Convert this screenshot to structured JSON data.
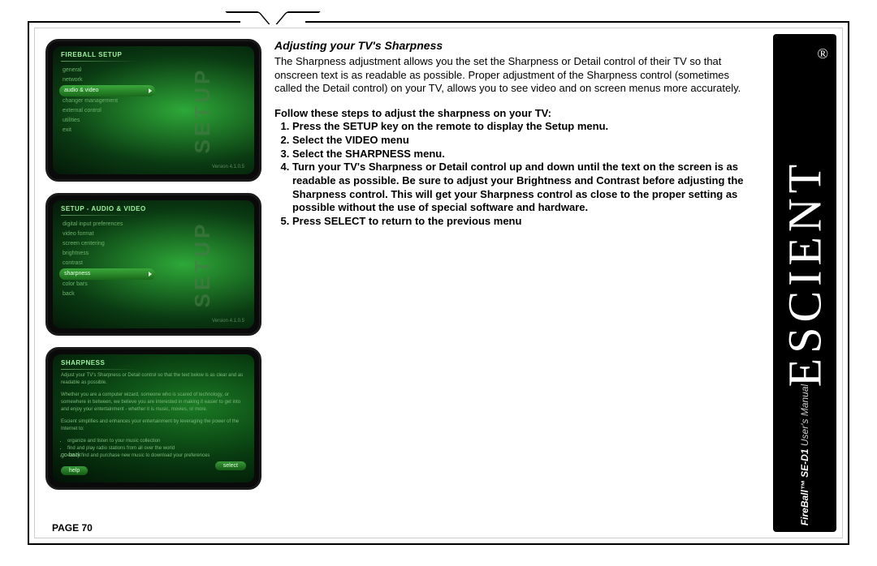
{
  "page": {
    "section_title": "Adjusting your TV's Sharpness",
    "intro": "The Sharpness adjustment allows you the set the Sharpness or Detail control of their TV so that onscreen text is as readable as possible. Proper adjustment of the Sharpness control (sometimes called the Detail control) on your TV, allows you to see video and on screen menus more accurately.",
    "steps_intro": "Follow these steps to adjust the sharpness on your TV:",
    "steps": [
      "Press the SETUP key on the remote to display the Setup menu.",
      "Select the VIDEO menu",
      "Select the SHARPNESS menu.",
      "Turn your TV's Sharpness or Detail control up and down until the text on the screen is as readable as possible. Be sure to adjust your Brightness and Contrast before adjusting the Sharpness control. This will get your Sharpness control as close to the proper setting as possible without the use of special software and hardware.",
      "Press SELECT to return to the previous menu"
    ],
    "page_number": "PAGE 70"
  },
  "brand": {
    "name": "ESCIENT",
    "registered": "®",
    "product_bold": "FireBall™ SE-D1",
    "product_rest": " User's Manual"
  },
  "screens": {
    "setup_word": "SETUP",
    "version": "Version 4.1.0.5",
    "s1": {
      "title": "FIREBALL SETUP",
      "items": [
        "general",
        "network",
        "audio & video",
        "changer management",
        "external control",
        "utilities",
        "exit"
      ],
      "selected_index": 2
    },
    "s2": {
      "title": "SETUP - AUDIO & VIDEO",
      "items": [
        "digital input preferences",
        "video format",
        "screen centering",
        "brightness",
        "contrast",
        "sharpness",
        "color bars",
        "back"
      ],
      "selected_index": 5
    },
    "s3": {
      "title": "SHARPNESS",
      "line1": "Adjust your TV's Sharpness or Detail control so that the text below is as clear and as readable as possible.",
      "line2": "Whether you are a computer wizard, someone who is scared of technology, or somewhere in between, we believe you are interested in making it easier to get into and enjoy your entertainment - whether it is music, movies, or more.",
      "line3": "Escient simplifies and enhances your entertainment by leveraging the power of the Internet to:",
      "bullets": [
        "organize and listen to your music collection",
        "find and play radio stations from all over the world",
        "easily find and purchase new music to download your preferences"
      ],
      "go_back": "go back",
      "help": "help",
      "select": "select"
    }
  },
  "colors": {
    "page_bg": "#ffffff",
    "frame_border": "#000000",
    "brand_bg": "#000000",
    "brand_fg": "#ffffff",
    "screen_bg": "#0a0a0a",
    "screen_green_light": "#2ea838",
    "screen_green_dark": "#041808",
    "menu_text": "#6ab06a",
    "menu_sel_bg": "#1a6a1a"
  }
}
